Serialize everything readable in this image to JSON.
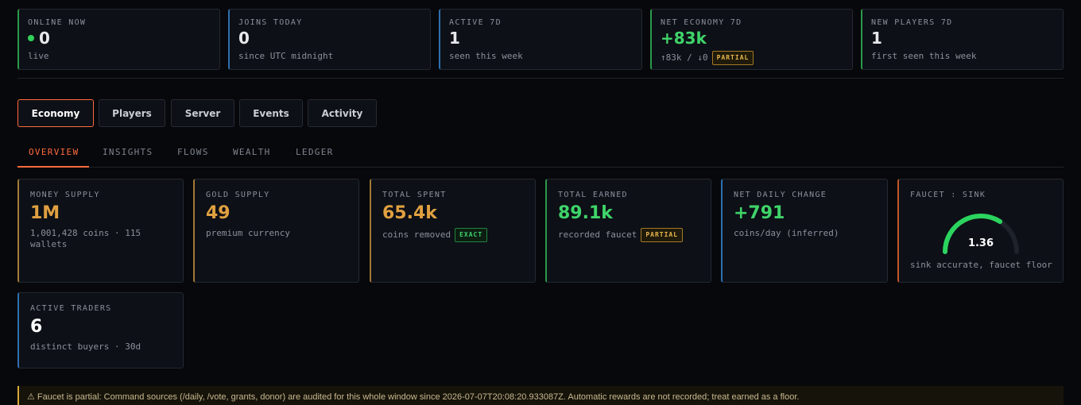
{
  "stats": [
    {
      "label": "ONLINE NOW",
      "value": "0",
      "sub": "live",
      "accent": "#2a9a4a"
    },
    {
      "label": "JOINS TODAY",
      "value": "0",
      "sub": "since UTC midnight",
      "accent": "#2f6fb0"
    },
    {
      "label": "ACTIVE 7D",
      "value": "1",
      "sub": "seen this week",
      "accent": "#2f6fb0"
    },
    {
      "label": "NET ECONOMY 7D",
      "value": "+83k",
      "sub": "↑83k / ↓0",
      "badge": "PARTIAL",
      "accent": "#2a9a4a"
    },
    {
      "label": "NEW PLAYERS 7D",
      "value": "1",
      "sub": "first seen this week",
      "accent": "#2a9a4a"
    }
  ],
  "tabs": [
    "Economy",
    "Players",
    "Server",
    "Events",
    "Activity"
  ],
  "active_tab": "Economy",
  "subtabs": [
    "OVERVIEW",
    "INSIGHTS",
    "FLOWS",
    "WEALTH",
    "LEDGER"
  ],
  "active_subtab": "OVERVIEW",
  "economy": [
    {
      "label": "MONEY SUPPLY",
      "value": "1M",
      "sub": "1,001,428 coins · 115 wallets",
      "color": "#e0a040",
      "accent": "#a27a35"
    },
    {
      "label": "GOLD SUPPLY",
      "value": "49",
      "sub": "premium currency",
      "color": "#e0a040",
      "accent": "#a27a35"
    },
    {
      "label": "TOTAL SPENT",
      "value": "65.4k",
      "sub": "coins removed",
      "badge": "EXACT",
      "color": "#e0a040",
      "accent": "#a27a35"
    },
    {
      "label": "TOTAL EARNED",
      "value": "89.1k",
      "sub": "recorded faucet",
      "badge": "PARTIAL",
      "color": "#3fd46a",
      "accent": "#2a9a4a"
    },
    {
      "label": "NET DAILY CHANGE",
      "value": "+791",
      "sub": "coins/day (inferred)",
      "color": "#3fd46a",
      "accent": "#2f6fb0"
    },
    {
      "label": "FAUCET : SINK",
      "gauge_value": "1.36",
      "gauge_fraction": 0.68,
      "sub": "sink accurate, faucet floor",
      "color": "#2bd45e",
      "accent": "#c0562a"
    },
    {
      "label": "ACTIVE TRADERS",
      "value": "6",
      "sub": "distinct buyers · 30d",
      "color": "#ffffff",
      "accent": "#2f6fb0"
    }
  ],
  "notice": {
    "text": "⚠ Faucet is partial: Command sources (/daily, /vote, grants, donor) are audited for this whole window since 2026-07-07T20:08:20.933087Z. Automatic rewards are not recorded; treat earned as a floor."
  }
}
